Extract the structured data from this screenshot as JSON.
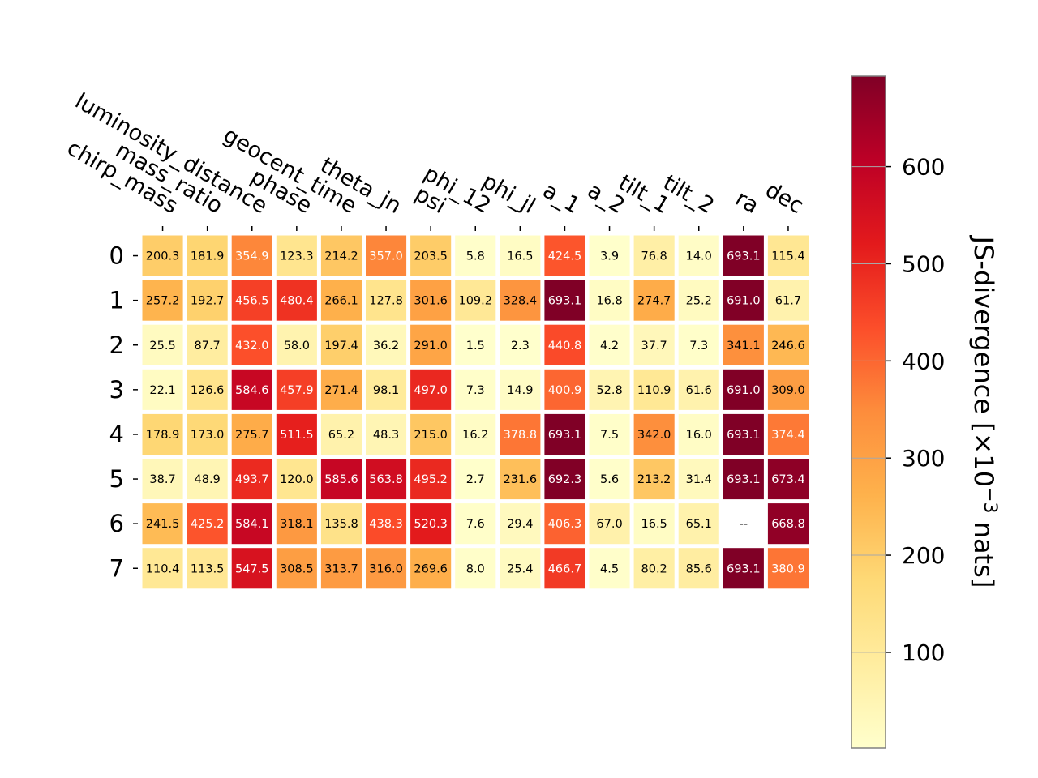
{
  "chart_data": {
    "type": "heatmap",
    "columns": [
      "chirp_mass",
      "mass_ratio",
      "luminosity_distance",
      "phase",
      "geocent_time",
      "theta_jn",
      "psi",
      "phi_12",
      "phi_jl",
      "a_1",
      "a_2",
      "tilt_1",
      "tilt_2",
      "ra",
      "dec"
    ],
    "rows": [
      "0",
      "1",
      "2",
      "3",
      "4",
      "5",
      "6",
      "7"
    ],
    "values": [
      [
        200.3,
        181.9,
        354.9,
        123.3,
        214.2,
        357.0,
        203.5,
        5.8,
        16.5,
        424.5,
        3.9,
        76.8,
        14.0,
        693.1,
        115.4
      ],
      [
        257.2,
        192.7,
        456.5,
        480.4,
        266.1,
        127.8,
        301.6,
        109.2,
        328.4,
        693.1,
        16.8,
        274.7,
        25.2,
        691.0,
        61.7
      ],
      [
        25.5,
        87.7,
        432.0,
        58.0,
        197.4,
        36.2,
        291.0,
        1.5,
        2.3,
        440.8,
        4.2,
        37.7,
        7.3,
        341.1,
        246.6
      ],
      [
        22.1,
        126.6,
        584.6,
        457.9,
        271.4,
        98.1,
        497.0,
        7.3,
        14.9,
        400.9,
        52.8,
        110.9,
        61.6,
        691.0,
        309.0
      ],
      [
        178.9,
        173.0,
        275.7,
        511.5,
        65.2,
        48.3,
        215.0,
        16.2,
        378.8,
        693.1,
        7.5,
        342.0,
        16.0,
        693.1,
        374.4
      ],
      [
        38.7,
        48.9,
        493.7,
        120.0,
        585.6,
        563.8,
        495.2,
        2.7,
        231.6,
        692.3,
        5.6,
        213.2,
        31.4,
        693.1,
        673.4
      ],
      [
        241.5,
        425.2,
        584.1,
        318.1,
        135.8,
        438.3,
        520.3,
        7.6,
        29.4,
        406.3,
        67.0,
        16.5,
        65.1,
        null,
        668.8
      ],
      [
        110.4,
        113.5,
        547.5,
        308.5,
        313.7,
        316.0,
        269.6,
        8.0,
        25.4,
        466.7,
        4.5,
        80.2,
        85.6,
        693.1,
        380.9
      ]
    ],
    "missing_label": "--",
    "colormap": "YlOrRd",
    "color_range": [
      1.5,
      693.1
    ],
    "colorbar": {
      "ticks": [
        100,
        200,
        300,
        400,
        500,
        600
      ],
      "tick_labels": [
        "100",
        "200",
        "300",
        "400",
        "500",
        "600"
      ],
      "label": "JS-divergence [×10",
      "label_exponent": "−3",
      "label_suffix": " nats]"
    }
  }
}
